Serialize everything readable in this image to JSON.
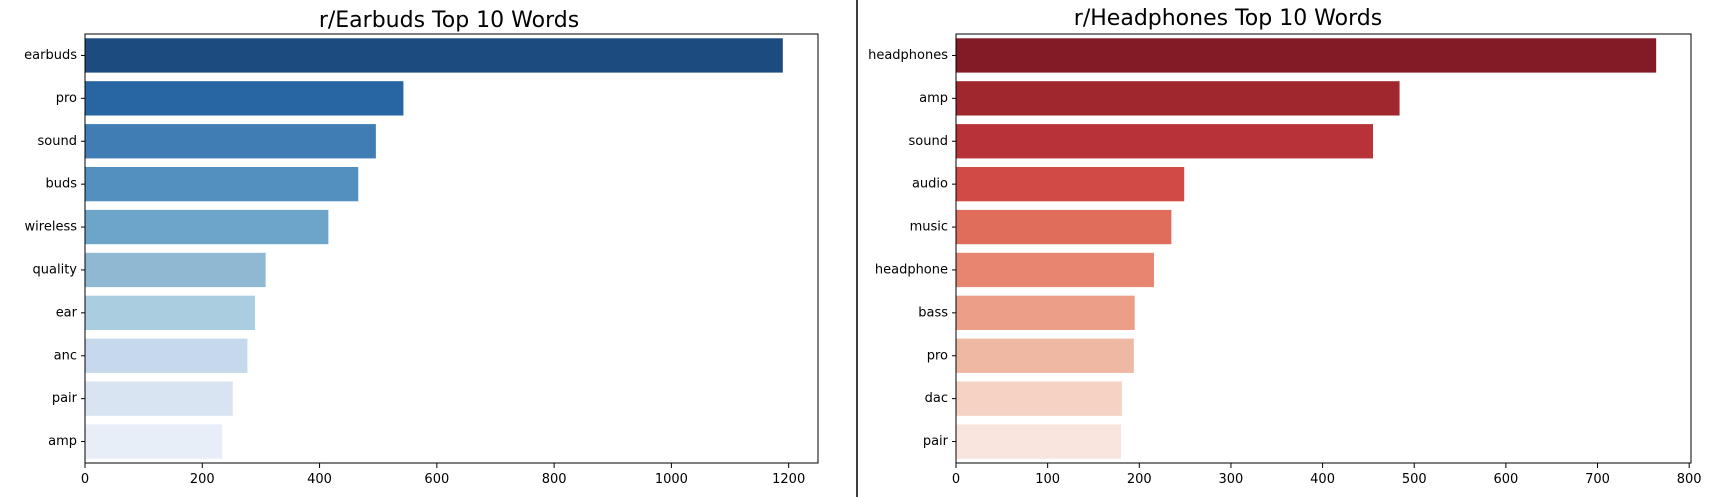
{
  "chart_data": [
    {
      "type": "bar",
      "orientation": "horizontal",
      "title": "r/Earbuds Top 10 Words",
      "xlabel": "",
      "ylabel": "",
      "categories": [
        "earbuds",
        "pro",
        "sound",
        "buds",
        "wireless",
        "quality",
        "ear",
        "anc",
        "pair",
        "amp"
      ],
      "values": [
        1190,
        543,
        496,
        466,
        415,
        308,
        290,
        277,
        252,
        234
      ],
      "xlim": [
        0,
        1250
      ],
      "xticks": [
        0,
        200,
        400,
        600,
        800,
        1000,
        1200
      ],
      "grid": false,
      "bar_colors": [
        "#1c4b80",
        "#2766a2",
        "#3f7db4",
        "#5390bf",
        "#6ca5c9",
        "#8fb8d3",
        "#aacde0",
        "#c6d8eb",
        "#d8e4f2",
        "#e8eef7"
      ]
    },
    {
      "type": "bar",
      "orientation": "horizontal",
      "title": "r/Headphones Top 10 Words",
      "xlabel": "",
      "ylabel": "",
      "categories": [
        "headphones",
        "amp",
        "sound",
        "audio",
        "music",
        "headphone",
        "bass",
        "pro",
        "dac",
        "pair"
      ],
      "values": [
        764,
        484,
        455,
        249,
        235,
        216,
        195,
        194,
        181,
        180
      ],
      "xlim": [
        0,
        802
      ],
      "xticks": [
        0,
        100,
        200,
        300,
        400,
        500,
        600,
        700,
        800
      ],
      "grid": false,
      "bar_colors": [
        "#821b26",
        "#a1272f",
        "#b8323a",
        "#d14a45",
        "#e06c5b",
        "#e88570",
        "#eb9e88",
        "#efb8a3",
        "#f5d2c3",
        "#f9e5de"
      ]
    }
  ]
}
